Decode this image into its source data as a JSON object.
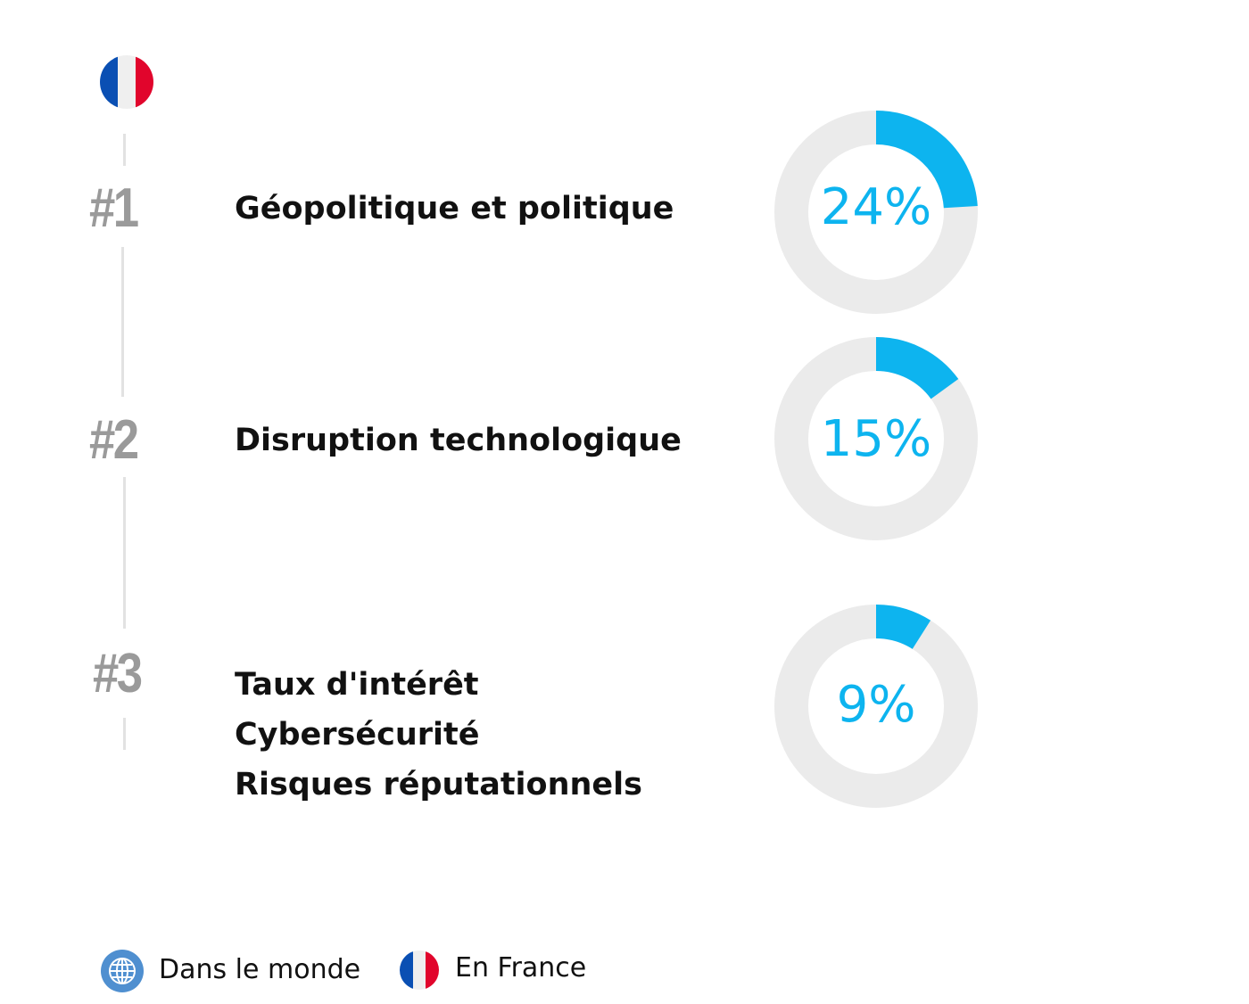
{
  "colors": {
    "accent": "#0db4ef",
    "track": "#ebebeb",
    "rank": "#9a9a9a"
  },
  "header_icon": "france-flag-icon",
  "chart_data": {
    "type": "donut",
    "title": "",
    "items": [
      {
        "rank": "#1",
        "labels": [
          "Géopolitique et politique"
        ],
        "value": 24,
        "value_label": "24%"
      },
      {
        "rank": "#2",
        "labels": [
          "Disruption technologique"
        ],
        "value": 15,
        "value_label": "15%"
      },
      {
        "rank": "#3",
        "labels": [
          "Taux d'intérêt",
          "Cybersécurité",
          "Risques réputationnels"
        ],
        "value": 9,
        "value_label": "9%"
      }
    ]
  },
  "legend": [
    {
      "icon": "globe-icon",
      "label": "Dans le monde"
    },
    {
      "icon": "france-flag-icon",
      "label": "En France"
    }
  ]
}
